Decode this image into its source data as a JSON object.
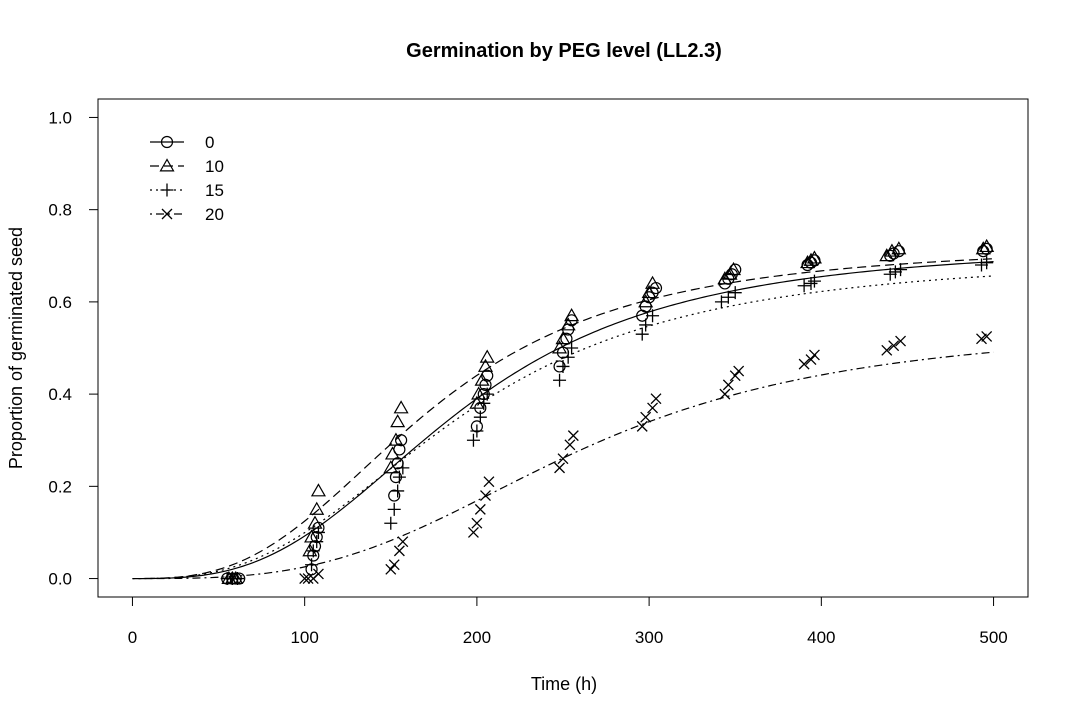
{
  "chart_data": {
    "type": "scatter",
    "title": "Germination by PEG level (LL2.3)",
    "xlabel": "Time (h)",
    "ylabel": "Proportion of germinated seed",
    "xlim": [
      -20,
      520
    ],
    "ylim": [
      -0.04,
      1.04
    ],
    "xticks": [
      0,
      100,
      200,
      300,
      400,
      500
    ],
    "yticks": [
      0.0,
      0.2,
      0.4,
      0.6,
      0.8,
      1.0
    ],
    "xtick_labels": [
      "0",
      "100",
      "200",
      "300",
      "400",
      "500"
    ],
    "ytick_labels": [
      "0.0",
      "0.2",
      "0.4",
      "0.6",
      "0.8",
      "1.0"
    ],
    "legend_position": "top-left",
    "grid": false,
    "series": [
      {
        "name": "0",
        "marker": "circle",
        "line_style": "solid",
        "points": [
          [
            55,
            0.0
          ],
          [
            58,
            0.0
          ],
          [
            60,
            0.0
          ],
          [
            62,
            0.0
          ],
          [
            104,
            0.02
          ],
          [
            105,
            0.05
          ],
          [
            106,
            0.07
          ],
          [
            107,
            0.09
          ],
          [
            108,
            0.11
          ],
          [
            152,
            0.18
          ],
          [
            153,
            0.22
          ],
          [
            154,
            0.25
          ],
          [
            155,
            0.28
          ],
          [
            156,
            0.3
          ],
          [
            200,
            0.33
          ],
          [
            202,
            0.37
          ],
          [
            204,
            0.4
          ],
          [
            205,
            0.42
          ],
          [
            206,
            0.44
          ],
          [
            248,
            0.46
          ],
          [
            250,
            0.49
          ],
          [
            252,
            0.52
          ],
          [
            253,
            0.54
          ],
          [
            255,
            0.56
          ],
          [
            296,
            0.57
          ],
          [
            298,
            0.59
          ],
          [
            300,
            0.61
          ],
          [
            302,
            0.62
          ],
          [
            304,
            0.63
          ],
          [
            344,
            0.64
          ],
          [
            346,
            0.65
          ],
          [
            348,
            0.66
          ],
          [
            350,
            0.67
          ],
          [
            392,
            0.68
          ],
          [
            394,
            0.685
          ],
          [
            396,
            0.69
          ],
          [
            440,
            0.7
          ],
          [
            442,
            0.705
          ],
          [
            445,
            0.71
          ],
          [
            494,
            0.71
          ],
          [
            496,
            0.715
          ]
        ],
        "curve": {
          "b": 3.0,
          "d": 0.725,
          "e": 190
        }
      },
      {
        "name": "10",
        "marker": "triangle",
        "line_style": "dashed",
        "points": [
          [
            56,
            0.0
          ],
          [
            58,
            0.0
          ],
          [
            60,
            0.0
          ],
          [
            103,
            0.06
          ],
          [
            104,
            0.09
          ],
          [
            106,
            0.12
          ],
          [
            107,
            0.15
          ],
          [
            108,
            0.19
          ],
          [
            150,
            0.24
          ],
          [
            151,
            0.27
          ],
          [
            153,
            0.3
          ],
          [
            154,
            0.34
          ],
          [
            156,
            0.37
          ],
          [
            200,
            0.38
          ],
          [
            201,
            0.4
          ],
          [
            203,
            0.43
          ],
          [
            205,
            0.46
          ],
          [
            206,
            0.48
          ],
          [
            248,
            0.5
          ],
          [
            250,
            0.52
          ],
          [
            253,
            0.55
          ],
          [
            255,
            0.57
          ],
          [
            298,
            0.6
          ],
          [
            300,
            0.62
          ],
          [
            302,
            0.64
          ],
          [
            344,
            0.65
          ],
          [
            347,
            0.66
          ],
          [
            349,
            0.67
          ],
          [
            392,
            0.685
          ],
          [
            394,
            0.69
          ],
          [
            396,
            0.695
          ],
          [
            438,
            0.7
          ],
          [
            441,
            0.71
          ],
          [
            445,
            0.715
          ],
          [
            494,
            0.715
          ],
          [
            496,
            0.72
          ]
        ],
        "curve": {
          "b": 2.9,
          "d": 0.725,
          "e": 172
        }
      },
      {
        "name": "15",
        "marker": "plus",
        "line_style": "dotted",
        "points": [
          [
            55,
            0.0
          ],
          [
            58,
            0.0
          ],
          [
            61,
            0.0
          ],
          [
            104,
            0.03
          ],
          [
            105,
            0.06
          ],
          [
            107,
            0.08
          ],
          [
            108,
            0.1
          ],
          [
            150,
            0.12
          ],
          [
            152,
            0.15
          ],
          [
            154,
            0.19
          ],
          [
            155,
            0.22
          ],
          [
            157,
            0.24
          ],
          [
            198,
            0.3
          ],
          [
            200,
            0.32
          ],
          [
            202,
            0.35
          ],
          [
            204,
            0.38
          ],
          [
            206,
            0.4
          ],
          [
            248,
            0.43
          ],
          [
            250,
            0.46
          ],
          [
            253,
            0.48
          ],
          [
            255,
            0.5
          ],
          [
            296,
            0.53
          ],
          [
            298,
            0.55
          ],
          [
            302,
            0.57
          ],
          [
            342,
            0.6
          ],
          [
            346,
            0.61
          ],
          [
            350,
            0.62
          ],
          [
            390,
            0.635
          ],
          [
            394,
            0.64
          ],
          [
            396,
            0.645
          ],
          [
            440,
            0.66
          ],
          [
            443,
            0.665
          ],
          [
            446,
            0.67
          ],
          [
            493,
            0.68
          ],
          [
            496,
            0.685
          ]
        ],
        "curve": {
          "b": 2.8,
          "d": 0.7,
          "e": 190
        }
      },
      {
        "name": "20",
        "marker": "cross",
        "line_style": "dotdash",
        "points": [
          [
            100,
            0.0
          ],
          [
            102,
            0.0
          ],
          [
            105,
            0.0
          ],
          [
            108,
            0.01
          ],
          [
            150,
            0.02
          ],
          [
            152,
            0.03
          ],
          [
            155,
            0.06
          ],
          [
            157,
            0.08
          ],
          [
            198,
            0.1
          ],
          [
            200,
            0.12
          ],
          [
            202,
            0.15
          ],
          [
            205,
            0.18
          ],
          [
            207,
            0.21
          ],
          [
            248,
            0.24
          ],
          [
            250,
            0.26
          ],
          [
            254,
            0.29
          ],
          [
            256,
            0.31
          ],
          [
            296,
            0.33
          ],
          [
            298,
            0.35
          ],
          [
            302,
            0.37
          ],
          [
            304,
            0.39
          ],
          [
            344,
            0.4
          ],
          [
            346,
            0.42
          ],
          [
            350,
            0.44
          ],
          [
            352,
            0.45
          ],
          [
            390,
            0.465
          ],
          [
            394,
            0.475
          ],
          [
            396,
            0.485
          ],
          [
            438,
            0.495
          ],
          [
            442,
            0.505
          ],
          [
            446,
            0.515
          ],
          [
            493,
            0.52
          ],
          [
            496,
            0.525
          ]
        ],
        "curve": {
          "b": 3.2,
          "d": 0.55,
          "e": 258
        }
      }
    ]
  }
}
